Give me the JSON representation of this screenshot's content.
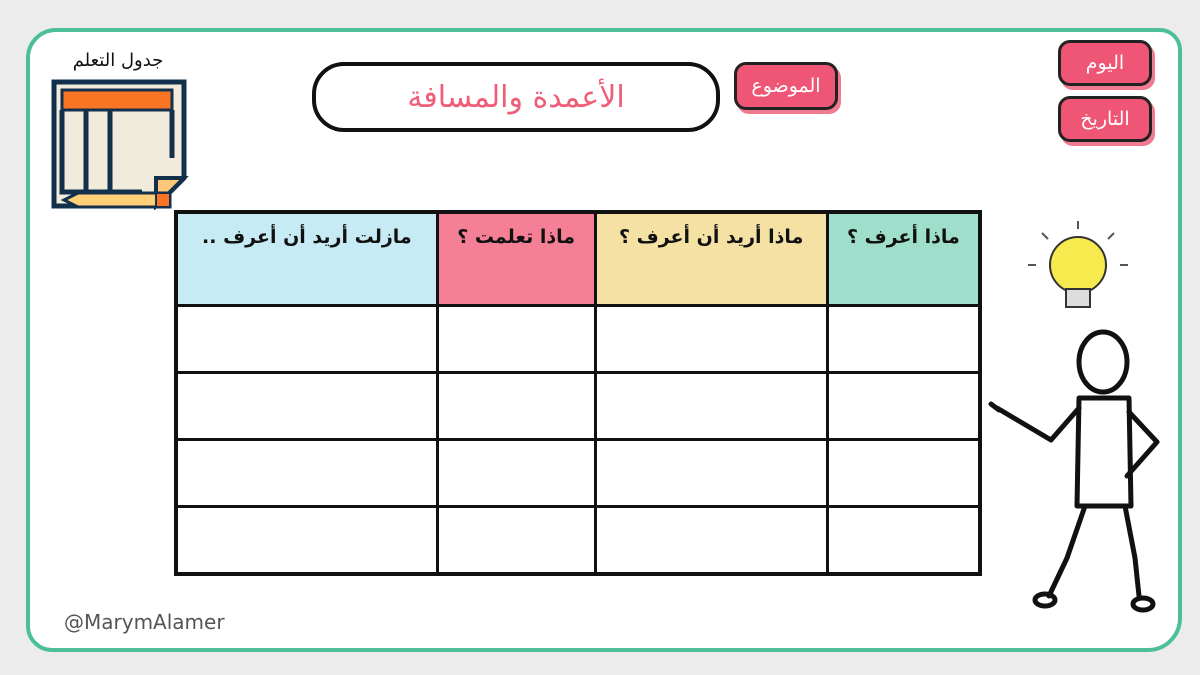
{
  "schedule_label": "جدول التعلم",
  "topic": {
    "tag": "الموضوع",
    "value": "الأعمدة والمسافة"
  },
  "day_label": "اليوم",
  "date_label": "التاريخ",
  "table": {
    "headers": [
      "ماذا أعرف ؟",
      "ماذا أريد أن أعرف ؟",
      "ماذا تعلمت ؟",
      "مازلت أريد أن أعرف .."
    ],
    "rows": [
      [
        "",
        "",
        "",
        ""
      ],
      [
        "",
        "",
        "",
        ""
      ],
      [
        "",
        "",
        "",
        ""
      ],
      [
        "",
        "",
        "",
        ""
      ]
    ]
  },
  "credit": "@MarymAlamer",
  "colors": {
    "frame": "#4cbf99",
    "accent": "#ef5575",
    "col1": "#9fdecb",
    "col2": "#f5e1a4",
    "col3": "#f57f95",
    "col4": "#c6ebf4"
  }
}
